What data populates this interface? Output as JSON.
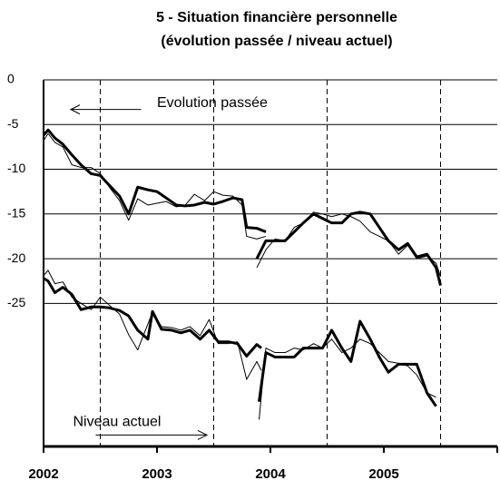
{
  "chart_data": {
    "type": "line",
    "title": "5 - Situation financière personnelle",
    "subtitle": "(évolution passée / niveau actuel)",
    "xlim": [
      2002,
      2006
    ],
    "xticks": [
      2002,
      2003,
      2004,
      2005
    ],
    "minor_xticks": [
      2002.5,
      2003.5,
      2004.5,
      2005.5
    ],
    "ylim": [
      -41,
      0
    ],
    "yticks": [
      0,
      -5,
      -10,
      -15,
      -20,
      -25
    ],
    "grid": true,
    "annotations": [
      {
        "text": "Evolution passée",
        "x": 2003.0,
        "y": -2.6,
        "arrow_from": 2002.86,
        "arrow_to": 2002.24
      },
      {
        "text": "Niveau actuel",
        "x": 2002.26,
        "y": -38.3,
        "arrow_from": 2002.46,
        "arrow_to": 2003.44
      }
    ],
    "series": [
      {
        "color": "#000000",
        "width": 3,
        "x": [
          2002.0,
          2002.04,
          2002.1,
          2002.17,
          2002.25,
          2002.33,
          2002.42,
          2002.5,
          2002.58,
          2002.67,
          2002.75,
          2002.83,
          2002.92,
          2003.0,
          2003.08,
          2003.17,
          2003.25,
          2003.33,
          2003.42,
          2003.5,
          2003.58,
          2003.67,
          2003.75,
          2003.79,
          2003.88,
          2003.96
        ],
        "values": [
          -6.2,
          -5.6,
          -6.5,
          -7.2,
          -8.4,
          -9.5,
          -10.5,
          -10.7,
          -11.8,
          -13.0,
          -15.0,
          -12.0,
          -12.3,
          -12.5,
          -13.2,
          -14.0,
          -14.1,
          -14.0,
          -13.7,
          -13.9,
          -13.6,
          -13.2,
          -13.4,
          -16.5,
          -16.6,
          -17.0
        ]
      },
      {
        "color": "#000000",
        "width": 1,
        "x": [
          2002.0,
          2002.04,
          2002.1,
          2002.17,
          2002.25,
          2002.33,
          2002.42,
          2002.5,
          2002.58,
          2002.67,
          2002.75,
          2002.83,
          2002.92,
          2003.0,
          2003.08,
          2003.17,
          2003.25,
          2003.33,
          2003.42,
          2003.5,
          2003.58,
          2003.67,
          2003.75,
          2003.79,
          2003.88,
          2003.96
        ],
        "values": [
          -6.8,
          -6.0,
          -7.0,
          -7.5,
          -9.5,
          -9.8,
          -9.8,
          -10.5,
          -12.0,
          -13.5,
          -15.7,
          -13.3,
          -14.0,
          -13.8,
          -13.6,
          -14.2,
          -14.0,
          -12.8,
          -13.5,
          -12.5,
          -12.9,
          -13.0,
          -14.0,
          -17.5,
          -17.8,
          -17.5
        ]
      },
      {
        "color": "#000000",
        "width": 3,
        "x": [
          2003.88,
          2003.96,
          2004.04,
          2004.13,
          2004.21,
          2004.29,
          2004.38,
          2004.46,
          2004.54,
          2004.63,
          2004.71,
          2004.79,
          2004.88,
          2004.96,
          2005.04,
          2005.13,
          2005.21,
          2005.29,
          2005.38,
          2005.46,
          2005.5
        ],
        "values": [
          -20.0,
          -18.0,
          -18.0,
          -18.0,
          -17.0,
          -16.0,
          -15.0,
          -15.5,
          -16.0,
          -16.0,
          -15.0,
          -14.8,
          -15.0,
          -16.5,
          -18.0,
          -19.0,
          -18.3,
          -19.8,
          -19.5,
          -21.0,
          -23.0
        ]
      },
      {
        "color": "#000000",
        "width": 1,
        "x": [
          2003.88,
          2003.96,
          2004.04,
          2004.13,
          2004.21,
          2004.29,
          2004.38,
          2004.46,
          2004.54,
          2004.63,
          2004.71,
          2004.79,
          2004.88,
          2004.96,
          2005.04,
          2005.13,
          2005.21,
          2005.29,
          2005.38,
          2005.46,
          2005.5
        ],
        "values": [
          -21.0,
          -19.0,
          -17.8,
          -18.0,
          -16.5,
          -16.0,
          -14.8,
          -15.0,
          -15.3,
          -15.0,
          -15.3,
          -15.8,
          -17.0,
          -17.5,
          -18.0,
          -19.5,
          -18.5,
          -20.0,
          -19.7,
          -20.5,
          -22.0
        ]
      },
      {
        "color": "#000000",
        "width": 3,
        "x": [
          2002.0,
          2002.04,
          2002.1,
          2002.17,
          2002.25,
          2002.33,
          2002.42,
          2002.5,
          2002.58,
          2002.67,
          2002.75,
          2002.83,
          2002.92,
          2002.96,
          2003.04,
          2003.13,
          2003.21,
          2003.29,
          2003.38,
          2003.46,
          2003.54,
          2003.63,
          2003.71,
          2003.79,
          2003.88,
          2003.92
        ],
        "values": [
          -22.2,
          -22.5,
          -23.8,
          -23.2,
          -24.0,
          -25.7,
          -25.4,
          -25.4,
          -25.5,
          -25.8,
          -26.4,
          -28.0,
          -29.0,
          -25.9,
          -27.9,
          -28.0,
          -28.3,
          -28.0,
          -29.0,
          -28.0,
          -29.3,
          -29.3,
          -29.5,
          -30.9,
          -29.6,
          -30.0
        ]
      },
      {
        "color": "#000000",
        "width": 1,
        "x": [
          2002.0,
          2002.04,
          2002.1,
          2002.17,
          2002.25,
          2002.33,
          2002.42,
          2002.5,
          2002.58,
          2002.67,
          2002.75,
          2002.83,
          2002.96,
          2003.04,
          2003.13,
          2003.21,
          2003.29,
          2003.38,
          2003.46,
          2003.54,
          2003.63,
          2003.71,
          2003.79,
          2003.88,
          2003.92
        ],
        "values": [
          -21.9,
          -21.3,
          -22.8,
          -22.6,
          -24.3,
          -25.0,
          -25.7,
          -24.3,
          -25.2,
          -26.2,
          -28.5,
          -30.2,
          -26.0,
          -27.6,
          -27.7,
          -28.0,
          -27.6,
          -28.6,
          -26.8,
          -29.5,
          -29.5,
          -29.3,
          -33.5,
          -31.5,
          -32.5
        ]
      },
      {
        "color": "#000000",
        "width": 3,
        "x": [
          2003.9,
          2003.96,
          2004.04,
          2004.13,
          2004.21,
          2004.29,
          2004.38,
          2004.46,
          2004.54,
          2004.63,
          2004.71,
          2004.79,
          2004.88,
          2004.96,
          2005.04,
          2005.13,
          2005.21,
          2005.29,
          2005.38,
          2005.46
        ],
        "values": [
          -36.0,
          -30.5,
          -31.0,
          -31.0,
          -31.0,
          -30.0,
          -30.0,
          -30.0,
          -28.0,
          -30.0,
          -31.5,
          -27.0,
          -29.0,
          -31.0,
          -32.7,
          -31.8,
          -31.8,
          -31.8,
          -35.0,
          -36.5
        ]
      },
      {
        "color": "#000000",
        "width": 1,
        "x": [
          2003.9,
          2003.96,
          2004.04,
          2004.13,
          2004.21,
          2004.29,
          2004.38,
          2004.46,
          2004.54,
          2004.63,
          2004.71,
          2004.79,
          2004.88,
          2004.96,
          2005.04,
          2005.13,
          2005.21,
          2005.29,
          2005.38,
          2005.46
        ],
        "values": [
          -38.0,
          -30.0,
          -30.5,
          -30.5,
          -30.0,
          -30.2,
          -29.5,
          -30.0,
          -29.0,
          -30.5,
          -30.0,
          -29.0,
          -29.5,
          -30.5,
          -31.5,
          -31.7,
          -32.0,
          -33.0,
          -35.0,
          -35.5
        ]
      }
    ]
  }
}
